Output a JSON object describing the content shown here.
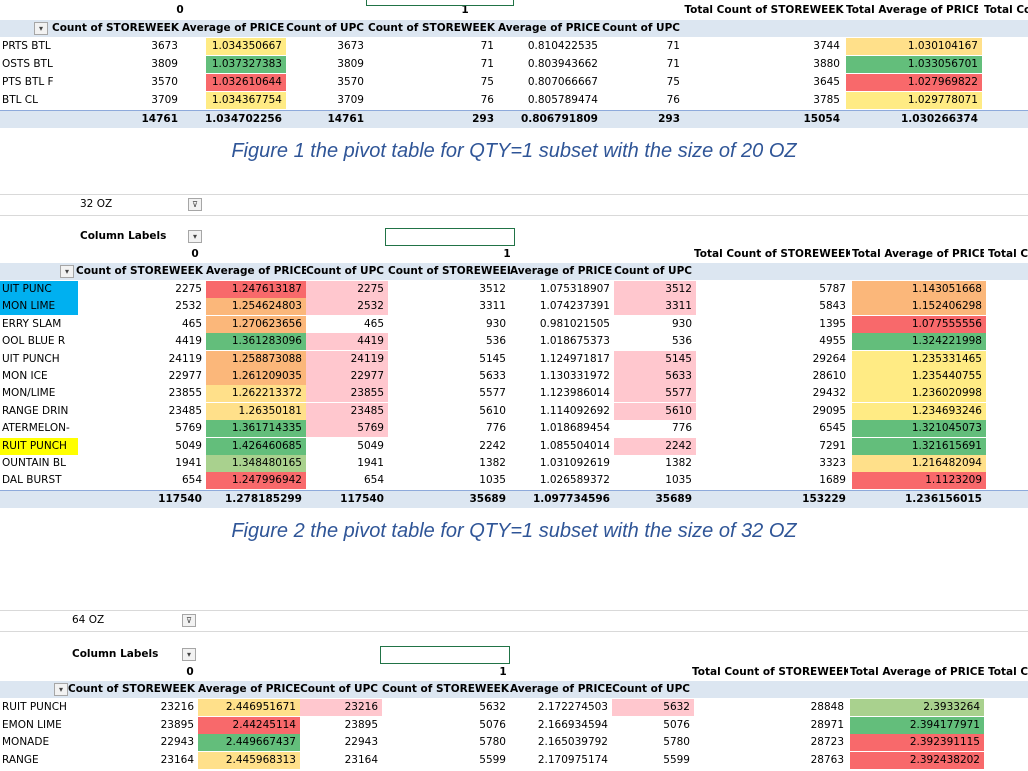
{
  "section1": {
    "col_nums": {
      "c0": "0",
      "c1": "1"
    },
    "headers": [
      "Count of STOREWEEK",
      "Average of PRICE",
      "Count of UPC",
      "Count of STOREWEEK",
      "Average of PRICE",
      "Count of UPC",
      "Total Count of STOREWEEK",
      "Total Average of PRICE",
      "Total Co"
    ],
    "rows": [
      {
        "label": "PRTS BTL",
        "v": [
          "3673",
          "1.034350667",
          "3673",
          "71",
          "0.810422535",
          "71",
          "3744",
          "1.030104167"
        ]
      },
      {
        "label": "OSTS BTL",
        "v": [
          "3809",
          "1.037327383",
          "3809",
          "71",
          "0.803943662",
          "71",
          "3880",
          "1.033056701"
        ]
      },
      {
        "label": "PTS BTL F",
        "v": [
          "3570",
          "1.032610644",
          "3570",
          "75",
          "0.807066667",
          "75",
          "3645",
          "1.027969822"
        ]
      },
      {
        "label": "BTL CL",
        "v": [
          "3709",
          "1.034367754",
          "3709",
          "76",
          "0.805789474",
          "76",
          "3785",
          "1.029778071"
        ]
      }
    ],
    "total": [
      "14761",
      "1.034702256",
      "14761",
      "293",
      "0.806791809",
      "293",
      "15054",
      "1.030266374"
    ],
    "caption": "Figure 1 the pivot table for QTY=1 subset with the size of 20 OZ"
  },
  "section2": {
    "filter_value": "32 OZ",
    "column_labels": "Column Labels",
    "col_nums": {
      "c0": "0",
      "c1": "1"
    },
    "top_headers": [
      "Total Count of STOREWEEK",
      "Total Average of PRICE",
      "Total Co"
    ],
    "headers": [
      "Count of STOREWEEK",
      "Average of PRICE",
      "Count of UPC",
      "Count of STOREWEEK",
      "Average of PRICE",
      "Count of UPC"
    ],
    "rows": [
      {
        "label": "UIT PUNC",
        "v": [
          "2275",
          "1.247613187",
          "2275",
          "3512",
          "1.075318907",
          "3512",
          "5787",
          "1.143051668"
        ]
      },
      {
        "label": "MON LIME",
        "v": [
          "2532",
          "1.254624803",
          "2532",
          "3311",
          "1.074237391",
          "3311",
          "5843",
          "1.152406298"
        ]
      },
      {
        "label": "ERRY SLAM",
        "v": [
          "465",
          "1.270623656",
          "465",
          "930",
          "0.981021505",
          "930",
          "1395",
          "1.077555556"
        ]
      },
      {
        "label": "OOL BLUE R",
        "v": [
          "4419",
          "1.361283096",
          "4419",
          "536",
          "1.018675373",
          "536",
          "4955",
          "1.324221998"
        ]
      },
      {
        "label": "UIT PUNCH",
        "v": [
          "24119",
          "1.258873088",
          "24119",
          "5145",
          "1.124971817",
          "5145",
          "29264",
          "1.235331465"
        ]
      },
      {
        "label": "MON ICE",
        "v": [
          "22977",
          "1.261209035",
          "22977",
          "5633",
          "1.130331972",
          "5633",
          "28610",
          "1.235440755"
        ]
      },
      {
        "label": "MON/LIME",
        "v": [
          "23855",
          "1.262213372",
          "23855",
          "5577",
          "1.123986014",
          "5577",
          "29432",
          "1.236020998"
        ]
      },
      {
        "label": "RANGE DRIN",
        "v": [
          "23485",
          "1.26350181",
          "23485",
          "5610",
          "1.114092692",
          "5610",
          "29095",
          "1.234693246"
        ]
      },
      {
        "label": "ATERMELON-",
        "v": [
          "5769",
          "1.361714335",
          "5769",
          "776",
          "1.018689454",
          "776",
          "6545",
          "1.321045073"
        ]
      },
      {
        "label": "RUIT PUNCH",
        "v": [
          "5049",
          "1.426460685",
          "5049",
          "2242",
          "1.085504014",
          "2242",
          "7291",
          "1.321615691"
        ]
      },
      {
        "label": "OUNTAIN BL",
        "v": [
          "1941",
          "1.348480165",
          "1941",
          "1382",
          "1.031092619",
          "1382",
          "3323",
          "1.216482094"
        ]
      },
      {
        "label": "DAL BURST",
        "v": [
          "654",
          "1.247996942",
          "654",
          "1035",
          "1.026589372",
          "1035",
          "1689",
          "1.1123209"
        ]
      }
    ],
    "total": [
      "117540",
      "1.278185299",
      "117540",
      "35689",
      "1.097734596",
      "35689",
      "153229",
      "1.236156015"
    ],
    "caption": "Figure 2 the pivot table for QTY=1 subset with the size of 32 OZ"
  },
  "section3": {
    "filter_value": "64 OZ",
    "column_labels": "Column Labels",
    "col_nums": {
      "c0": "0",
      "c1": "1"
    },
    "top_headers": [
      "Total Count of STOREWEEK",
      "Total Average of PRICE",
      "Total Co"
    ],
    "headers": [
      "Count of STOREWEEK",
      "Average of PRICE",
      "Count of UPC",
      "Count of STOREWEEK",
      "Average of PRICE",
      "Count of UPC"
    ],
    "rows": [
      {
        "label": "RUIT PUNCH",
        "v": [
          "23216",
          "2.446951671",
          "23216",
          "5632",
          "2.172274503",
          "5632",
          "28848",
          "2.3933264"
        ]
      },
      {
        "label": "EMON LIME",
        "v": [
          "23895",
          "2.44245114",
          "23895",
          "5076",
          "2.166934594",
          "5076",
          "28971",
          "2.394177971"
        ]
      },
      {
        "label": "MONADE",
        "v": [
          "22943",
          "2.449667437",
          "22943",
          "5780",
          "2.165039792",
          "5780",
          "28723",
          "2.392391115"
        ]
      },
      {
        "label": "RANGE",
        "v": [
          "23164",
          "2.445968313",
          "23164",
          "5599",
          "2.170975174",
          "5599",
          "28763",
          "2.392438202"
        ]
      }
    ]
  }
}
